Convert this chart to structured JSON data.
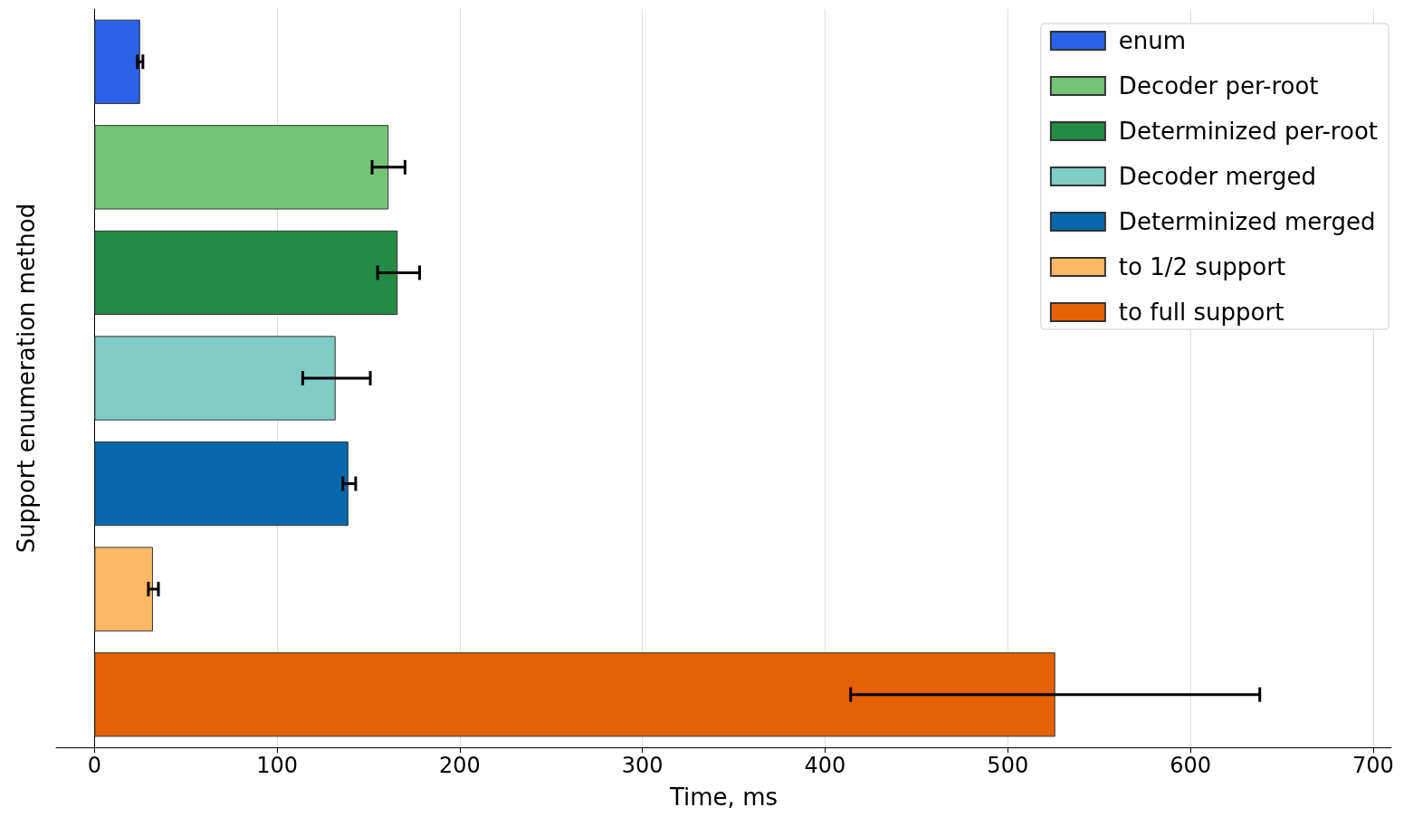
{
  "chart_data": {
    "type": "bar",
    "orientation": "horizontal",
    "xlabel": "Time, ms",
    "ylabel": "Support enumeration method",
    "categories": [
      null,
      null,
      null,
      null,
      null,
      null,
      null
    ],
    "series": [
      {
        "name": "enum",
        "color": "#2a62e8",
        "values": [
          25,
          null,
          null,
          null,
          null,
          null,
          null
        ],
        "errors": [
          [
            23.5,
            26.5
          ],
          null,
          null,
          null,
          null,
          null,
          null
        ]
      },
      {
        "name": "Decoder per-root",
        "color": "#74c476",
        "values": [
          null,
          161,
          null,
          null,
          null,
          null,
          null
        ],
        "errors": [
          null,
          [
            152,
            170
          ],
          null,
          null,
          null,
          null,
          null
        ]
      },
      {
        "name": "Determinized per-root",
        "color": "#238b45",
        "values": [
          null,
          null,
          166,
          null,
          null,
          null,
          null
        ],
        "errors": [
          null,
          null,
          [
            155,
            178
          ],
          null,
          null,
          null,
          null
        ]
      },
      {
        "name": "Decoder merged",
        "color": "#7fcdc4",
        "values": [
          null,
          null,
          null,
          132,
          null,
          null,
          null
        ],
        "errors": [
          null,
          null,
          null,
          [
            114,
            151
          ],
          null,
          null,
          null
        ]
      },
      {
        "name": "Determinized merged",
        "color": "#0868ac",
        "values": [
          null,
          null,
          null,
          null,
          139,
          null,
          null
        ],
        "errors": [
          null,
          null,
          null,
          null,
          [
            136,
            143
          ],
          null,
          null
        ]
      },
      {
        "name": "to 1/2 support",
        "color": "#fdb863",
        "values": [
          null,
          null,
          null,
          null,
          null,
          32,
          null
        ],
        "errors": [
          null,
          null,
          null,
          null,
          null,
          [
            29.5,
            35
          ],
          null
        ]
      },
      {
        "name": "to full support",
        "color": "#e66101",
        "values": [
          null,
          null,
          null,
          null,
          null,
          null,
          526
        ],
        "errors": [
          null,
          null,
          null,
          null,
          null,
          null,
          [
            414,
            638
          ]
        ]
      }
    ],
    "xlim": [
      -21,
      710
    ],
    "xticks": [
      0,
      100,
      200,
      300,
      400,
      500,
      600,
      700
    ],
    "grid": "x",
    "legend": "top right"
  }
}
